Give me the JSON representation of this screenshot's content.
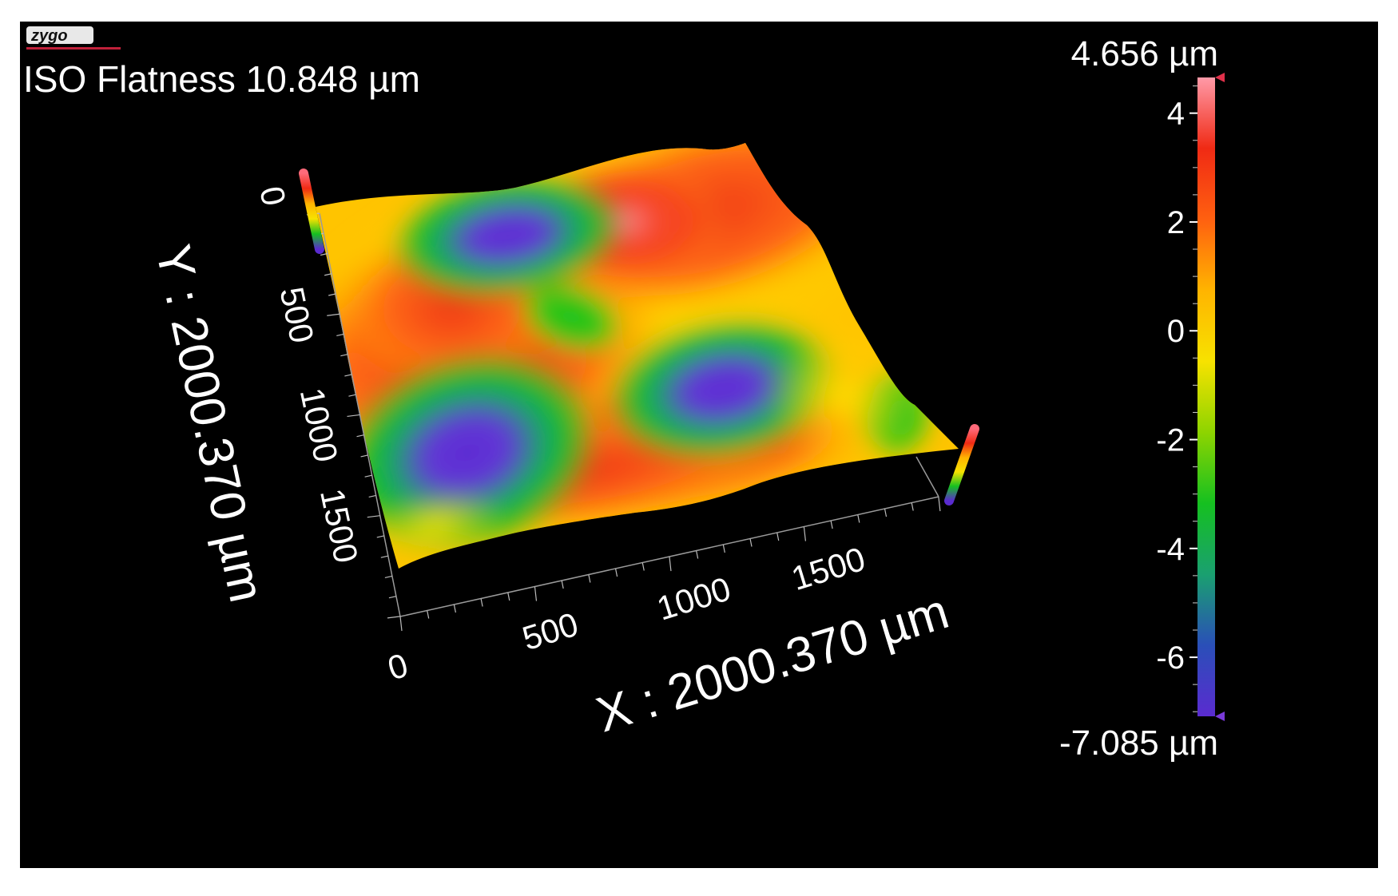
{
  "logo": {
    "text": "zygo",
    "underline_color": "#c0213a"
  },
  "header": {
    "metric": "ISO Flatness 10.848 µm"
  },
  "color_scale": {
    "max_label": "4.656 µm",
    "min_label": "-7.085 µm",
    "max_value": 4.656,
    "min_value": -7.085,
    "ticks": [
      "4",
      "2",
      "0",
      "-2",
      "-4",
      "-6"
    ],
    "tick_values": [
      4,
      2,
      0,
      -2,
      -4,
      -6
    ],
    "stops": [
      "#5a2bd0",
      "#2a4fb8",
      "#1aa070",
      "#15c020",
      "#8ed400",
      "#f7e200",
      "#ffb400",
      "#ff6010",
      "#f02a14",
      "#ff9aa8"
    ]
  },
  "axes": {
    "x_title": "X : 2000.370 µm",
    "y_title": "Y : 2000.370 µm",
    "x_ticks": [
      "0",
      "500",
      "1000",
      "1500"
    ],
    "y_ticks": [
      "0",
      "500",
      "1000",
      "1500"
    ]
  },
  "surface": {
    "type": "3d-surface",
    "colors": {
      "base": "#ffc400",
      "low": "#15c020",
      "deep": "#5a2bd0",
      "high": "#f02a14",
      "peak": "#ff9aa8"
    }
  }
}
